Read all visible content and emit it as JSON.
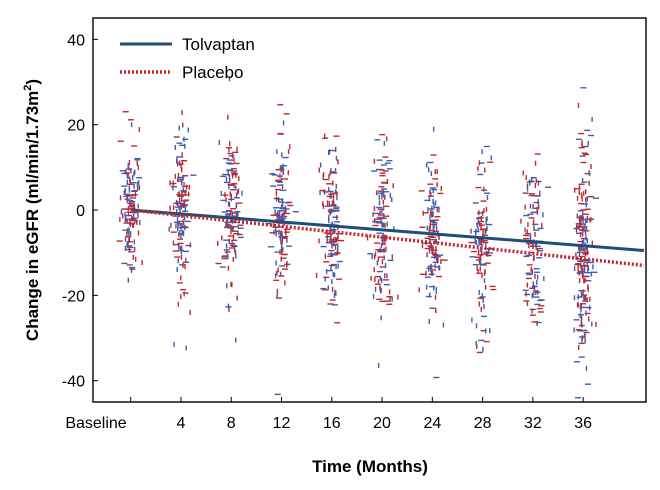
{
  "chart_data": {
    "type": "scatter",
    "title": "",
    "xlabel": "Time (Months)",
    "ylabel": "Change in eGFR (ml/min/1.73m2)",
    "ylabel_parts": {
      "main": "Change in eGFR (ml/min/1.73m",
      "superscript": "2",
      "close": ")"
    },
    "xlim": [
      -3,
      41
    ],
    "ylim": [
      -45,
      45
    ],
    "xticks": [
      0,
      4,
      8,
      12,
      16,
      20,
      24,
      28,
      32,
      36
    ],
    "xtick_labels": [
      "Baseline",
      "4",
      "8",
      "12",
      "16",
      "20",
      "24",
      "28",
      "32",
      "36"
    ],
    "yticks": [
      -40,
      -20,
      0,
      20,
      40
    ],
    "ytick_labels": [
      "-40",
      "-20",
      "0",
      "20",
      "40"
    ],
    "grid": false,
    "legend_position": "top-left",
    "series": [
      {
        "name": "Tolvaptan",
        "kind": "trend-line",
        "color": "#1f4e79",
        "style": "solid",
        "x": [
          0,
          41
        ],
        "y": [
          0,
          -9.5
        ]
      },
      {
        "name": "Placebo",
        "kind": "trend-line",
        "color": "#c1272d",
        "style": "dotted",
        "x": [
          0,
          41
        ],
        "y": [
          0,
          -13
        ]
      }
    ],
    "scatter_clusters": {
      "description_units": "data units",
      "tolvaptan_color": "#3a5fb0",
      "placebo_color": "#c1272d",
      "visits": [
        {
          "x": 0,
          "center": 0,
          "spread": 8,
          "count": 130
        },
        {
          "x": 4,
          "center": -1,
          "spread": 9,
          "count": 140
        },
        {
          "x": 8,
          "center": -2,
          "spread": 10,
          "count": 140
        },
        {
          "x": 12,
          "center": -3,
          "spread": 10,
          "count": 140
        },
        {
          "x": 16,
          "center": -4,
          "spread": 10,
          "count": 140
        },
        {
          "x": 20,
          "center": -5,
          "spread": 10,
          "count": 135
        },
        {
          "x": 24,
          "center": -6,
          "spread": 10,
          "count": 130
        },
        {
          "x": 28,
          "center": -7,
          "spread": 10,
          "count": 120
        },
        {
          "x": 32,
          "center": -8,
          "spread": 10,
          "count": 120
        },
        {
          "x": 36,
          "center": -9,
          "spread": 12,
          "count": 210
        }
      ]
    }
  }
}
